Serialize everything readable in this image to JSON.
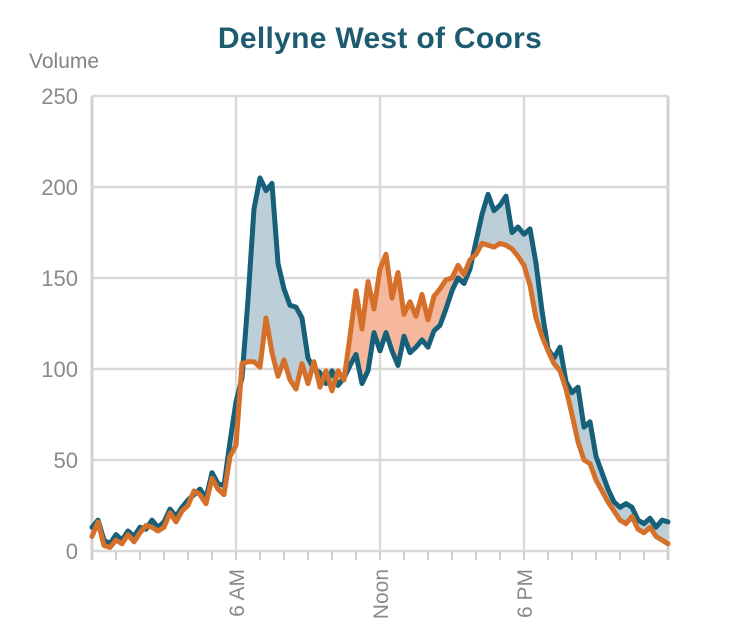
{
  "title": "Dellyne West of Coors",
  "y_axis": {
    "label": "Volume",
    "ticks": [
      250,
      200,
      150,
      100,
      50,
      0
    ]
  },
  "x_axis": {
    "major_ticks": [
      {
        "label": "6 AM",
        "hour": 6
      },
      {
        "label": "Noon",
        "hour": 12
      },
      {
        "label": "6 PM",
        "hour": 18
      }
    ],
    "minor_tick_interval_hours": 1,
    "range_hours": [
      0,
      24
    ]
  },
  "colors": {
    "background": "#ffffff",
    "title": "#1d5c70",
    "axis_text": "#8a8a8a",
    "gridline": "#d9d9d9",
    "frame": "#d2d2d2",
    "tick": "#c9c9c9",
    "teal_line": "#17607A",
    "orange_line": "#D4702A",
    "fill_teal_above": "#BCCFD8",
    "fill_orange_above": "#F6B89C"
  },
  "chart_data": {
    "type": "line",
    "title": "Dellyne West of Coors",
    "ylabel": "Volume",
    "xlabel": "",
    "ylim": [
      0,
      250
    ],
    "x_unit": "time-of-day",
    "x_start_hour": 0,
    "x_end_hour": 24,
    "x_step_minutes": 15,
    "x_tick_labels": [
      "6 AM",
      "Noon",
      "6 PM"
    ],
    "grid": true,
    "legend": false,
    "fill_between_rule": "band between the two series: light blue where teal series is higher, light salmon where orange series is higher",
    "series": [
      {
        "name": "teal",
        "color": "#17607A",
        "values": [
          13,
          17,
          6,
          4,
          9,
          6,
          11,
          8,
          13,
          12,
          17,
          13,
          16,
          23,
          19,
          24,
          28,
          31,
          34,
          29,
          43,
          37,
          36,
          60,
          82,
          95,
          138,
          188,
          205,
          198,
          202,
          158,
          144,
          135,
          134,
          128,
          106,
          100,
          98,
          92,
          99,
          91,
          95,
          102,
          108,
          92,
          99,
          120,
          110,
          120,
          110,
          102,
          118,
          109,
          112,
          116,
          112,
          121,
          124,
          133,
          143,
          150,
          147,
          155,
          170,
          185,
          196,
          187,
          190,
          195,
          175,
          178,
          174,
          177,
          158,
          132,
          111,
          106,
          112,
          93,
          87,
          90,
          68,
          71,
          52,
          43,
          34,
          27,
          24,
          26,
          24,
          17,
          15,
          18,
          13,
          17,
          16
        ]
      },
      {
        "name": "orange",
        "color": "#D4702A",
        "values": [
          8,
          16,
          3,
          2,
          6,
          4,
          9,
          5,
          10,
          14,
          13,
          11,
          13,
          21,
          16,
          22,
          25,
          33,
          31,
          26,
          40,
          34,
          31,
          52,
          58,
          103,
          104,
          104,
          101,
          128,
          109,
          96,
          105,
          94,
          89,
          103,
          92,
          104,
          90,
          99,
          88,
          99,
          94,
          118,
          143,
          122,
          148,
          133,
          155,
          163,
          139,
          153,
          130,
          137,
          129,
          141,
          127,
          140,
          144,
          149,
          150,
          157,
          152,
          160,
          163,
          169,
          168,
          167,
          169,
          168,
          166,
          162,
          157,
          146,
          128,
          118,
          110,
          103,
          99,
          89,
          75,
          60,
          50,
          48,
          39,
          33,
          27,
          22,
          17,
          15,
          19,
          12,
          10,
          13,
          8,
          6,
          4
        ]
      }
    ]
  }
}
